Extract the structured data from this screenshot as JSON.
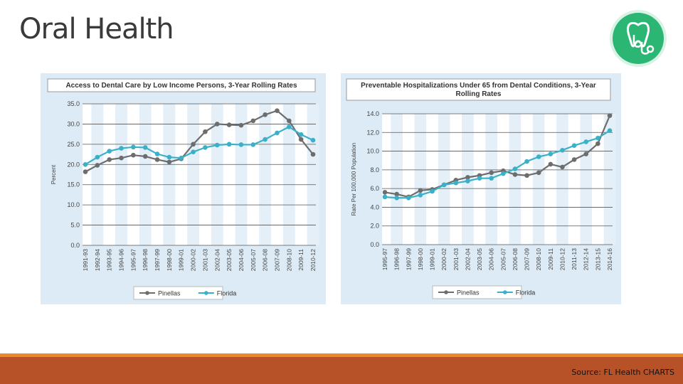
{
  "slide": {
    "title": "Oral Health",
    "source": "Source: FL Health CHARTS",
    "logo_icon": "tooth-stethoscope-icon",
    "colors": {
      "accent": "#2bb673",
      "footer": "#b75228",
      "footer_line": "#e88a2b"
    }
  },
  "chart_data": [
    {
      "type": "line",
      "title": "Access to Dental Care by Low Income Persons, 3-Year Rolling Rates",
      "ylabel": "Percent",
      "xlabel": "",
      "ylim": [
        0,
        35
      ],
      "yticks": [
        "0.0",
        "5.0",
        "10.0",
        "15.0",
        "20.0",
        "25.0",
        "30.0",
        "35.0"
      ],
      "categories": [
        "1991-93",
        "1992-94",
        "1993-95",
        "1994-96",
        "1995-97",
        "1996-98",
        "1997-99",
        "1998-00",
        "1999-01",
        "2000-02",
        "2001-03",
        "2002-04",
        "2003-05",
        "2004-06",
        "2005-07",
        "2006-08",
        "2007-09",
        "2008-10",
        "2009-11",
        "2010-12"
      ],
      "series": [
        {
          "name": "Pinellas",
          "color": "#6d6d6d",
          "values": [
            18.2,
            19.8,
            21.2,
            21.6,
            22.3,
            22.0,
            21.2,
            20.6,
            21.4,
            25.0,
            28.1,
            30.0,
            29.8,
            29.7,
            30.8,
            32.3,
            33.3,
            30.8,
            26.2,
            22.5
          ]
        },
        {
          "name": "Florida",
          "color": "#3bb0c9",
          "values": [
            20.0,
            21.8,
            23.3,
            24.0,
            24.3,
            24.2,
            22.6,
            21.8,
            21.6,
            23.1,
            24.2,
            24.8,
            25.0,
            24.9,
            24.9,
            26.2,
            27.8,
            29.3,
            27.4,
            26.0
          ]
        }
      ],
      "grid": true,
      "legend": "bottom"
    },
    {
      "type": "line",
      "title": "Preventable Hospitalizations Under 65 from Dental Conditions, 3-Year Rolling Rates",
      "ylabel": "Rate Per 100,000 Population",
      "xlabel": "",
      "ylim": [
        0,
        14
      ],
      "yticks": [
        "0.0",
        "2.0",
        "4.0",
        "6.0",
        "8.0",
        "10.0",
        "12.0",
        "14.0"
      ],
      "categories": [
        "1995-97",
        "1996-98",
        "1997-99",
        "1998-00",
        "1999-01",
        "2000-02",
        "2001-03",
        "2002-04",
        "2003-05",
        "2004-06",
        "2005-07",
        "2006-08",
        "2007-09",
        "2008-10",
        "2009-11",
        "2010-12",
        "2011-13",
        "2012-14",
        "2013-15",
        "2014-16"
      ],
      "series": [
        {
          "name": "Pinellas",
          "color": "#6d6d6d",
          "values": [
            5.6,
            5.4,
            5.1,
            5.8,
            5.9,
            6.4,
            6.9,
            7.2,
            7.4,
            7.7,
            7.9,
            7.5,
            7.4,
            7.7,
            8.6,
            8.3,
            9.1,
            9.7,
            10.8,
            13.8
          ]
        },
        {
          "name": "Florida",
          "color": "#3bb0c9",
          "values": [
            5.1,
            5.0,
            5.0,
            5.3,
            5.7,
            6.4,
            6.6,
            6.8,
            7.1,
            7.1,
            7.6,
            8.1,
            8.9,
            9.4,
            9.7,
            10.1,
            10.6,
            11.0,
            11.4,
            12.2
          ]
        }
      ],
      "grid": true,
      "legend": "bottom"
    }
  ]
}
